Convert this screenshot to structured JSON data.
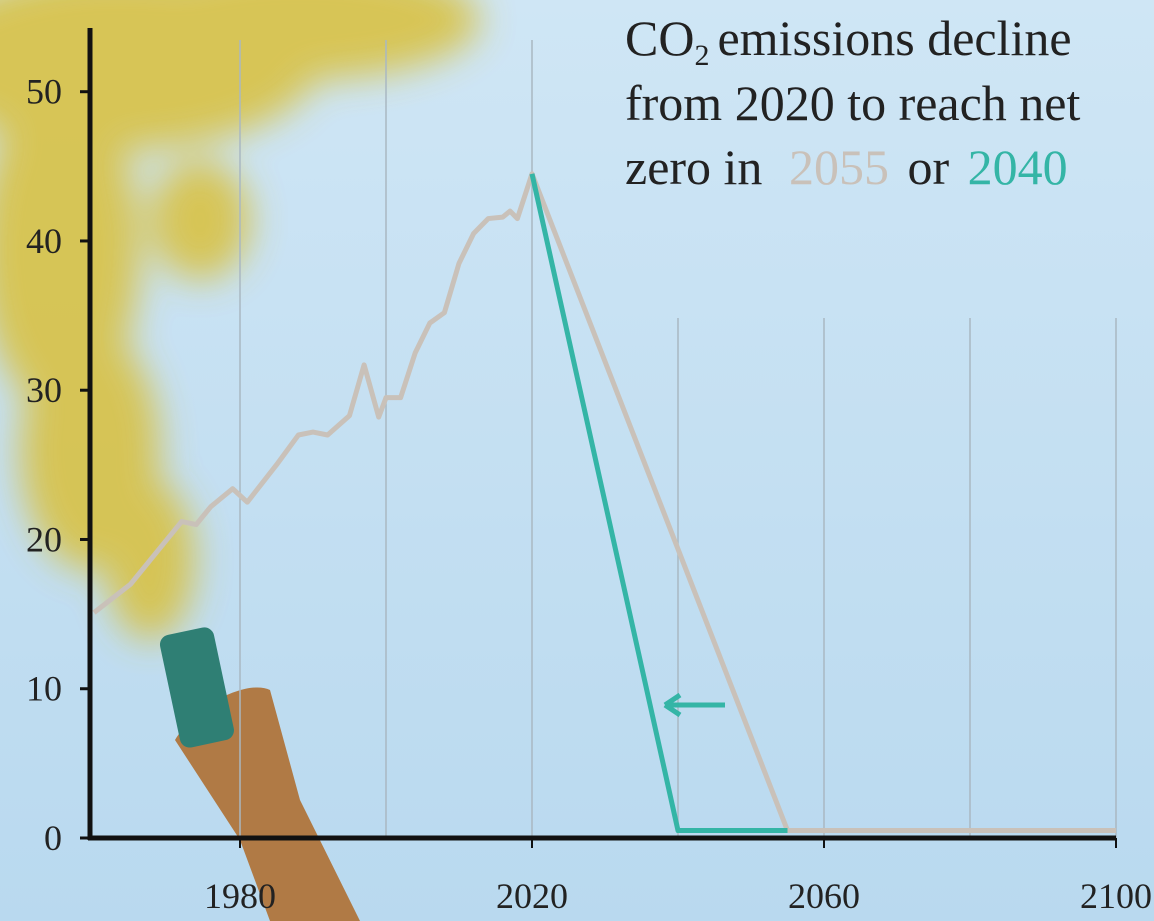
{
  "chart_data": {
    "type": "line",
    "title_parts": [
      "CO",
      "2",
      "emissions decline",
      "from 2020 to reach net",
      "zero in",
      "2055",
      "or",
      "2040"
    ],
    "series": [
      {
        "name": "2055",
        "color": "#c9c1b9",
        "x": [
          1960,
          1965,
          1970,
          1972,
          1974,
          1976,
          1979,
          1981,
          1985,
          1988,
          1990,
          1992,
          1995,
          1997,
          1999,
          2000,
          2002,
          2004,
          2006,
          2008,
          2010,
          2012,
          2014,
          2016,
          2017,
          2018,
          2020,
          2055,
          2100
        ],
        "values": [
          15.1,
          17,
          20,
          21.2,
          21,
          22.2,
          23.4,
          22.5,
          25,
          27,
          27.2,
          27,
          28.3,
          31.7,
          28.2,
          29.5,
          29.5,
          32.5,
          34.5,
          35.2,
          38.5,
          40.5,
          41.5,
          41.6,
          42,
          41.5,
          44.5,
          0.5,
          0.5
        ]
      },
      {
        "name": "2040",
        "color": "#34b5a6",
        "x": [
          2020,
          2040,
          2055
        ],
        "values": [
          44.5,
          0.5,
          0.5
        ]
      }
    ],
    "xlim": [
      1960,
      2100
    ],
    "ylim": [
      0,
      54
    ],
    "xticks": [
      1980,
      2020,
      2060,
      2100
    ],
    "xgrid": [
      1980,
      2000,
      2020,
      2040,
      2060,
      2080,
      2100
    ],
    "yticks": [
      0,
      10,
      20,
      30,
      40,
      50
    ],
    "grid": true
  }
}
